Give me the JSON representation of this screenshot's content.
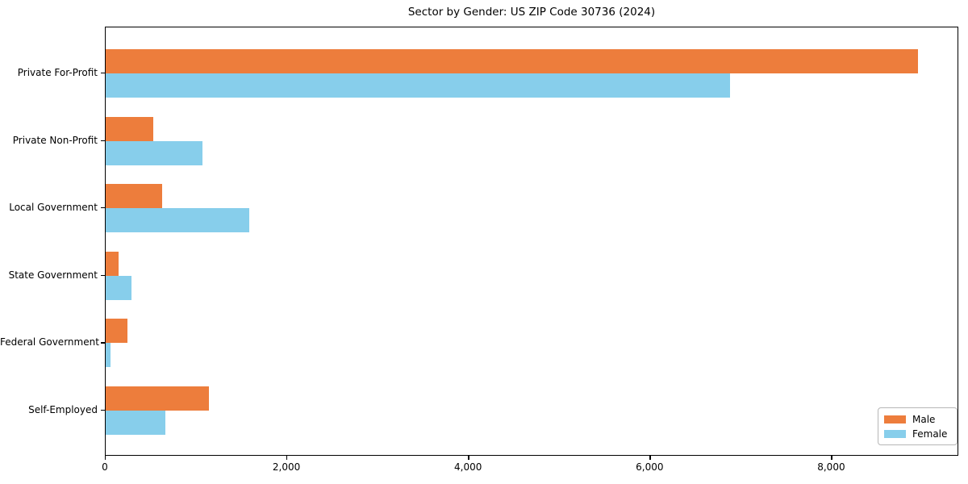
{
  "title": "Sector by Gender: US ZIP Code 30736 (2024)",
  "chart_data": {
    "type": "bar",
    "orientation": "horizontal",
    "title": "Sector by Gender: US ZIP Code 30736 (2024)",
    "categories": [
      "Private For-Profit",
      "Private Non-Profit",
      "Local Government",
      "State Government",
      "Federal Government",
      "Self-Employed"
    ],
    "series": [
      {
        "name": "Male",
        "color": "#ed7d3c",
        "values": [
          8950,
          520,
          620,
          140,
          240,
          1140
        ]
      },
      {
        "name": "Female",
        "color": "#87ceeb",
        "values": [
          6880,
          1070,
          1580,
          280,
          50,
          660
        ]
      }
    ],
    "xlabel": "",
    "ylabel": "",
    "xlim": [
      0,
      9400
    ],
    "xticks": [
      0,
      2000,
      4000,
      6000,
      8000
    ],
    "xtick_labels": [
      "0",
      "2,000",
      "4,000",
      "6,000",
      "8,000"
    ],
    "grid": false,
    "legend_position": "lower right",
    "axis_color": "#000000",
    "background_color": "#ffffff"
  }
}
